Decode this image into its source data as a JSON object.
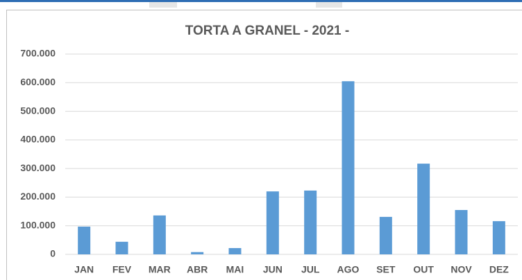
{
  "chart_data": {
    "type": "bar",
    "title": "TORTA A GRANEL - 2021 -",
    "categories": [
      "JAN",
      "FEV",
      "MAR",
      "ABR",
      "MAI",
      "JUN",
      "JUL",
      "AGO",
      "SET",
      "OUT",
      "NOV",
      "DEZ"
    ],
    "values": [
      97000,
      44000,
      136000,
      8000,
      22000,
      220000,
      223000,
      605000,
      131000,
      317000,
      155000,
      116000
    ],
    "color": "#5b9bd5",
    "ylim": [
      0,
      700000
    ],
    "yticks": [
      0,
      {
        "value": 100000,
        "label": "100.000"
      },
      {
        "value": 200000,
        "label": "200.000"
      },
      {
        "value": 300000,
        "label": "300.000"
      },
      {
        "value": 400000,
        "label": "400.000"
      },
      {
        "value": 500000,
        "label": "500.000"
      },
      {
        "value": 600000,
        "label": "600.000"
      },
      {
        "value": 700000,
        "label": "700.000"
      }
    ],
    "grid": true
  }
}
